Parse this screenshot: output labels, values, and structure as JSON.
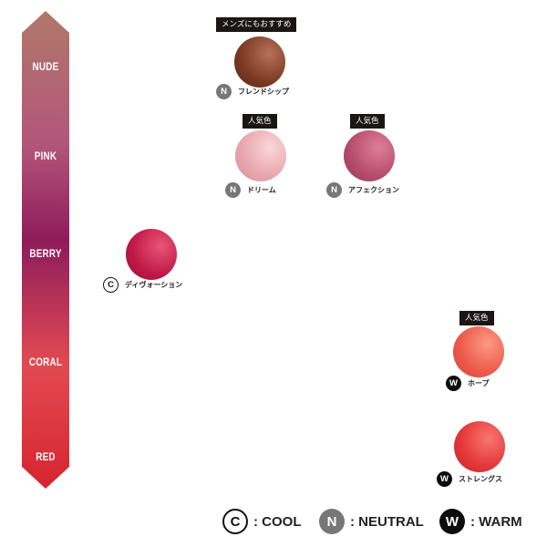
{
  "scale": {
    "labels": [
      "NUDE",
      "PINK",
      "BERRY",
      "CORAL",
      "RED"
    ],
    "colors": {
      "top": "#b0786a",
      "pink": "#b3567a",
      "berry": "#8e1b5b",
      "coral": "#e24a52",
      "bottom": "#d62430"
    }
  },
  "tags": {
    "mens": "メンズにもおすすめ",
    "popular": "人気色"
  },
  "shades": [
    {
      "name": "フレンドシップ",
      "badge": "N",
      "tone": "neutral",
      "color": "#7b3a23",
      "tag": "mens"
    },
    {
      "name": "ドリーム",
      "badge": "N",
      "tone": "neutral",
      "color": "#e8a7ae",
      "tag": "popular"
    },
    {
      "name": "アフェクション",
      "badge": "N",
      "tone": "neutral",
      "color": "#b64d6d",
      "tag": "popular"
    },
    {
      "name": "ディヴォーション",
      "badge": "C",
      "tone": "cool",
      "color": "#c01948",
      "tag": ""
    },
    {
      "name": "ホープ",
      "badge": "W",
      "tone": "warm",
      "color": "#ed5a4a",
      "tag": "popular"
    },
    {
      "name": "ストレングス",
      "badge": "W",
      "tone": "warm",
      "color": "#e4373b",
      "tag": ""
    }
  ],
  "legend": [
    {
      "badge": "C",
      "tone": "cool",
      "text": ": COOL"
    },
    {
      "badge": "N",
      "tone": "neutral",
      "text": ": NEUTRAL"
    },
    {
      "badge": "W",
      "tone": "warm",
      "text": ": WARM"
    }
  ]
}
